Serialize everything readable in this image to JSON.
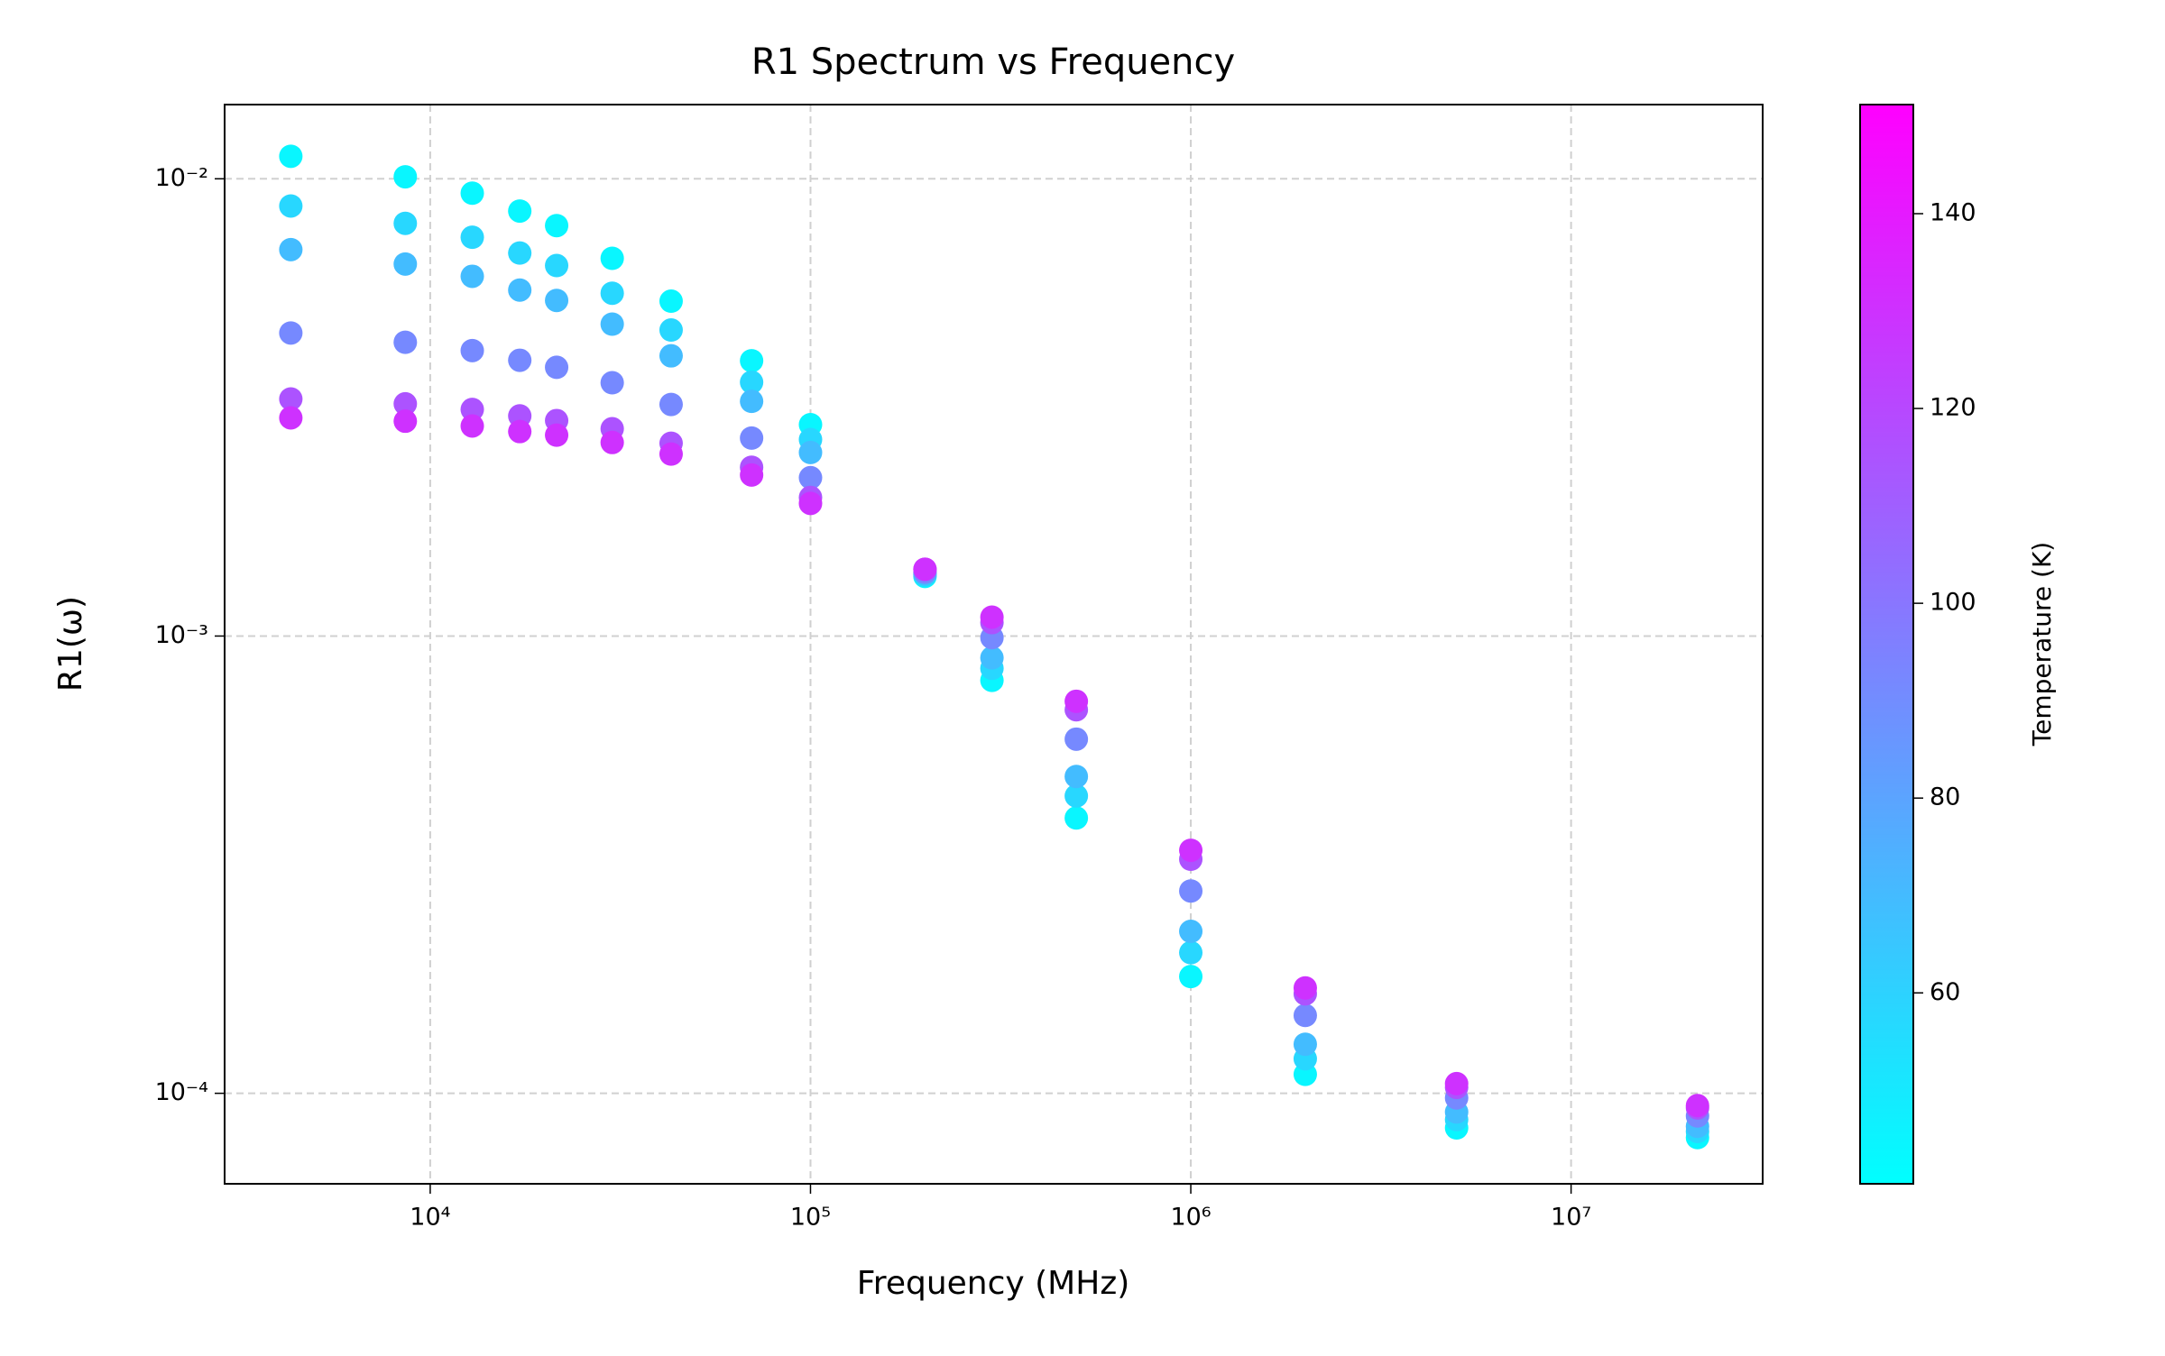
{
  "chart_data": {
    "type": "scatter",
    "title": "R1 Spectrum vs Frequency",
    "xlabel": "Frequency (MHz)",
    "ylabel": "R1(ω)",
    "log_x": true,
    "log_y": true,
    "grid": true,
    "xlim": [
      2880,
      31900000
    ],
    "ylim": [
      6.34e-05,
      0.01453
    ],
    "xticks": [
      {
        "value": 10000,
        "label": "10⁴"
      },
      {
        "value": 100000,
        "label": "10⁵"
      },
      {
        "value": 1000000,
        "label": "10⁶"
      },
      {
        "value": 10000000,
        "label": "10⁷"
      }
    ],
    "yticks": [
      {
        "value": 0.0001,
        "label": "10⁻⁴"
      },
      {
        "value": 0.001,
        "label": "10⁻³"
      },
      {
        "value": 0.01,
        "label": "10⁻²"
      }
    ],
    "x": [
      4300,
      8600,
      12900,
      17200,
      21500,
      30100,
      43000,
      70000,
      100000,
      200000,
      300000,
      500000,
      1000000,
      2000000,
      5000000,
      21500000
    ],
    "colorbar": {
      "label": "Temperature (K)",
      "cmap": [
        "#00ffff",
        "#ff00ff"
      ],
      "clim": [
        40.4,
        151.2
      ],
      "ticks": [
        60,
        80,
        100,
        120,
        140
      ]
    },
    "series": [
      {
        "c": 45,
        "color": "#09f6ff",
        "values": [
          0.0112,
          0.0101,
          0.0093,
          0.0085,
          0.0079,
          0.0067,
          0.0054,
          0.004,
          0.0029,
          0.00135,
          0.0008,
          0.0004,
          0.00018,
          0.00011,
          8.4e-05,
          8e-05
        ]
      },
      {
        "c": 58,
        "color": "#28d7ff",
        "values": [
          0.00872,
          0.00799,
          0.00745,
          0.00688,
          0.00646,
          0.00562,
          0.00467,
          0.00359,
          0.00269,
          0.00136,
          0.00085,
          0.000447,
          0.000203,
          0.000119,
          8.76e-05,
          8.25e-05
        ]
      },
      {
        "c": 70,
        "color": "#43bcff",
        "values": [
          0.007,
          0.00651,
          0.00612,
          0.00571,
          0.00542,
          0.00481,
          0.0041,
          0.00326,
          0.00252,
          0.00137,
          0.000896,
          0.000493,
          0.000226,
          0.000128,
          9.1e-05,
          8.47e-05
        ]
      },
      {
        "c": 92,
        "color": "#7689ff",
        "values": [
          0.0046,
          0.00439,
          0.00421,
          0.00401,
          0.00387,
          0.00358,
          0.00321,
          0.00271,
          0.00222,
          0.00138,
          0.000992,
          0.000595,
          0.000277,
          0.000148,
          9.77e-05,
          8.92e-05
        ]
      },
      {
        "c": 115,
        "color": "#ac53ff",
        "values": [
          0.0033,
          0.00322,
          0.00313,
          0.00303,
          0.00296,
          0.00284,
          0.00264,
          0.00234,
          0.00201,
          0.0014,
          0.00107,
          0.00069,
          0.000325,
          0.000165,
          0.000103,
          9.29e-05
        ]
      },
      {
        "c": 130,
        "color": "#ce31ff",
        "values": [
          0.003,
          0.00295,
          0.00288,
          0.0028,
          0.00275,
          0.00265,
          0.0025,
          0.00225,
          0.00195,
          0.0014,
          0.0011,
          0.00072,
          0.00034,
          0.00017,
          0.000105,
          9.4e-05
        ]
      }
    ]
  }
}
